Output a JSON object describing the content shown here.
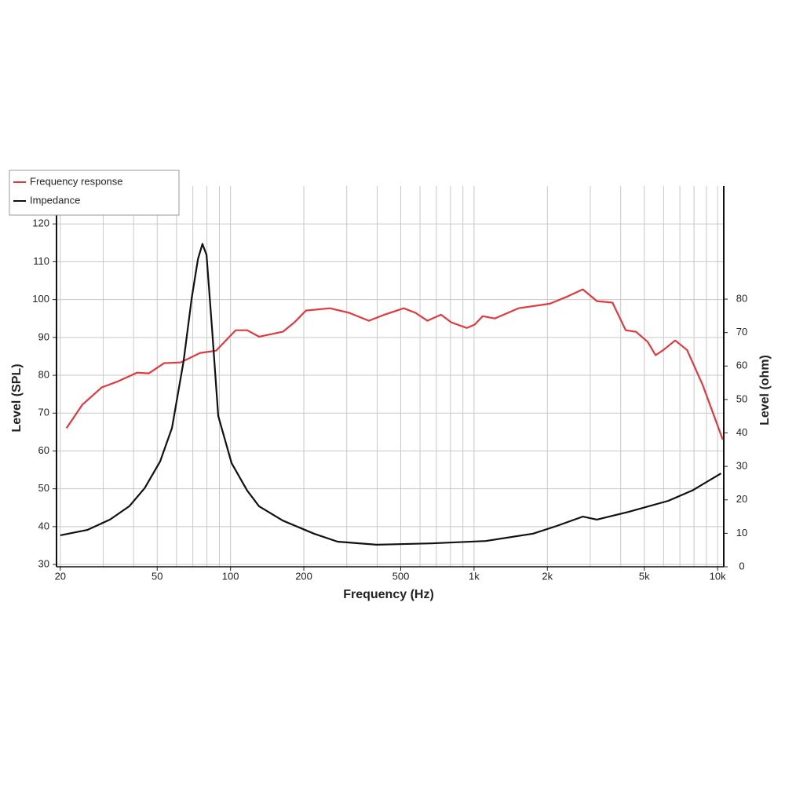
{
  "chart_data": {
    "type": "line",
    "xlabel": "Frequency (Hz)",
    "ylabel": "Level (SPL)",
    "y2label": "Level (ohm)",
    "xscale": "log",
    "xlim": [
      19.3,
      10600
    ],
    "ylim": [
      29.4,
      130
    ],
    "y2lim": [
      0,
      113.8
    ],
    "xticks": [
      20,
      50,
      100,
      200,
      500,
      {
        "value": 1000,
        "label": "1k"
      },
      {
        "value": 2000,
        "label": "2k"
      },
      {
        "value": 5000,
        "label": "5k"
      },
      {
        "value": 10000,
        "label": "10k"
      }
    ],
    "xgrid": [
      20,
      30,
      40,
      50,
      60,
      70,
      80,
      90,
      100,
      200,
      300,
      400,
      500,
      600,
      700,
      800,
      900,
      1000,
      2000,
      3000,
      4000,
      5000,
      6000,
      7000,
      8000,
      9000,
      10000
    ],
    "yticks": [
      30,
      40,
      50,
      60,
      70,
      80,
      90,
      100,
      110,
      120
    ],
    "y2ticks": [
      0,
      10,
      20,
      30,
      40,
      50,
      60,
      70,
      80
    ],
    "grid": true,
    "legend": "top-left",
    "series": [
      {
        "name": "Frequency response",
        "color": "#e0393e",
        "x": [
          21.2,
          24.6,
          29.6,
          34.5,
          41.3,
          46.2,
          53.4,
          62.3,
          75,
          87.2,
          105,
          117,
          131,
          164,
          183,
          204,
          256,
          307,
          370,
          428,
          514,
          575,
          643,
          731,
          806,
          934,
          1006,
          1085,
          1216,
          1521,
          2047,
          2376,
          2796,
          3195,
          3700,
          4196,
          4620,
          5164,
          5561,
          5989,
          6697,
          7488,
          8690,
          10500
        ],
        "values": [
          66,
          72.2,
          76.8,
          78.4,
          80.7,
          80.5,
          83.2,
          83.4,
          85.9,
          86.5,
          91.9,
          91.9,
          90.2,
          91.5,
          94,
          97.1,
          97.7,
          96.5,
          94.4,
          96,
          97.7,
          96.5,
          94.4,
          96,
          94,
          92.5,
          93.4,
          95.6,
          95,
          97.7,
          98.9,
          100.6,
          102.7,
          99.6,
          99.2,
          91.9,
          91.5,
          88.8,
          85.3,
          86.7,
          89.2,
          86.7,
          77.4,
          63
        ]
      },
      {
        "name": "Impedance",
        "color": "#111111",
        "axis": "y2",
        "x": [
          20,
          25.8,
          32,
          38.4,
          44.4,
          51.4,
          57.5,
          64.2,
          69.3,
          73.5,
          76.7,
          79.7,
          84,
          89,
          101,
          117,
          131,
          164,
          220,
          275,
          398,
          667,
          1115,
          1747,
          2185,
          2796,
          3195,
          4310,
          6270,
          7880,
          10330
        ],
        "values": [
          9.4,
          11,
          14.1,
          18.1,
          23.5,
          31.5,
          41.5,
          61.5,
          80.3,
          92,
          96.5,
          93.2,
          70.9,
          45.1,
          31,
          22.8,
          18.1,
          13.8,
          9.9,
          7.5,
          6.6,
          7,
          7.7,
          9.9,
          12.2,
          15,
          14.1,
          16.4,
          19.7,
          22.8,
          27.9
        ]
      }
    ]
  }
}
